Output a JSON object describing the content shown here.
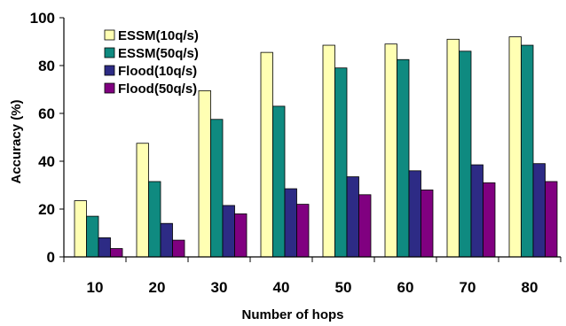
{
  "chart_data": {
    "type": "bar",
    "xlabel": "Number of hops",
    "ylabel": "Accuracy (%)",
    "ylim": [
      0,
      100
    ],
    "yticks": [
      0,
      20,
      40,
      60,
      80,
      100
    ],
    "categories": [
      "10",
      "20",
      "30",
      "40",
      "50",
      "60",
      "70",
      "80"
    ],
    "legend_position": "top-left",
    "grid": false,
    "series": [
      {
        "name": "ESSM(10q/s)",
        "color": "#ffffb3",
        "values": [
          23.5,
          47.5,
          69.5,
          85.5,
          88.5,
          89,
          91,
          92
        ]
      },
      {
        "name": "ESSM(50q/s)",
        "color": "#0f8a80",
        "values": [
          17,
          31.5,
          57.5,
          63,
          79,
          82.5,
          86,
          88.5
        ]
      },
      {
        "name": "Flood(10q/s)",
        "color": "#2d2b85",
        "values": [
          8,
          14,
          21.5,
          28.5,
          33.5,
          36,
          38.5,
          39
        ]
      },
      {
        "name": "Flood(50q/s)",
        "color": "#800080",
        "values": [
          3.5,
          7,
          18,
          22,
          26,
          28,
          31,
          31.5
        ]
      }
    ]
  }
}
